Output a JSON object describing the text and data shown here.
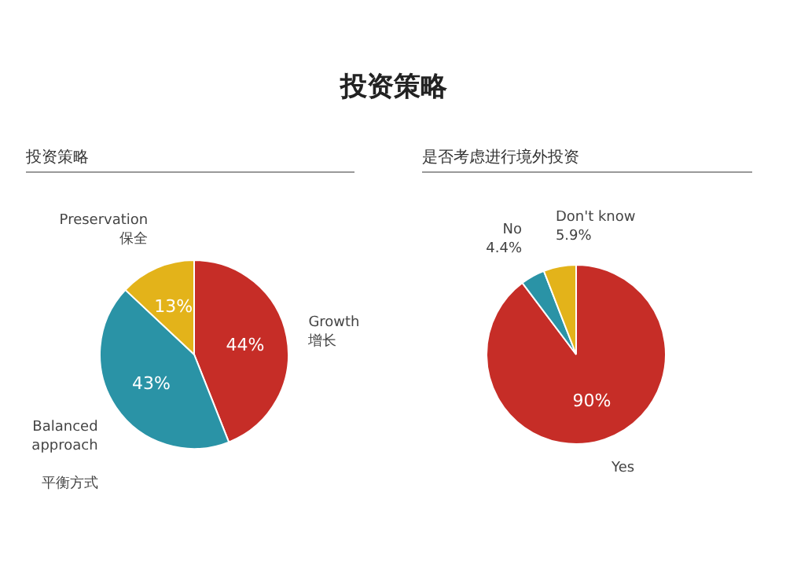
{
  "chart_data": [
    {
      "type": "other",
      "title": "投资策略"
    },
    {
      "type": "pie",
      "title": "投资策略",
      "categories": [
        "Growth\n增长",
        "Balanced\napproach\n\n平衡方式",
        "Preservation\n保全"
      ],
      "values": [
        44,
        43,
        13
      ],
      "value_labels": [
        "44%",
        "43%",
        "13%"
      ],
      "colors": [
        "#c62d27",
        "#2a93a6",
        "#e3b31a"
      ]
    },
    {
      "type": "pie",
      "title": "是否考虑进行境外投资",
      "categories": [
        "Yes",
        "No",
        "Don't know"
      ],
      "values": [
        90,
        4.4,
        5.9
      ],
      "value_labels": [
        "90%",
        "4.4%",
        "5.9%"
      ],
      "colors": [
        "#c62d27",
        "#2a93a6",
        "#e3b31a"
      ]
    }
  ]
}
